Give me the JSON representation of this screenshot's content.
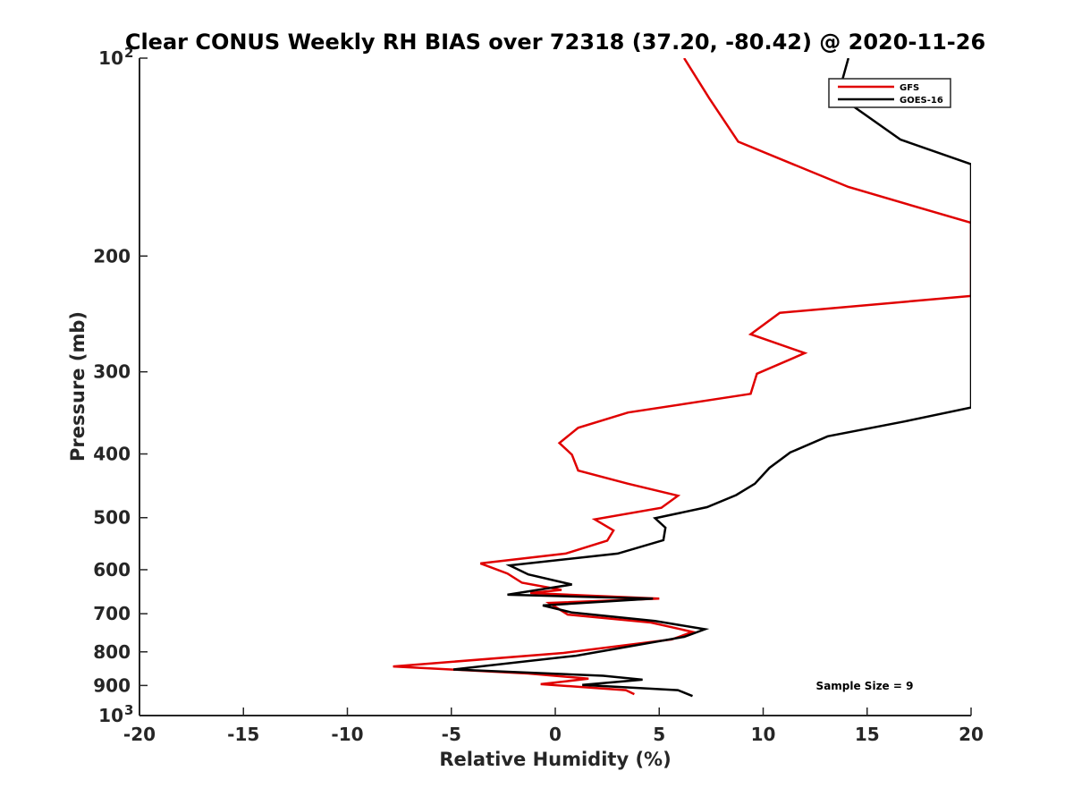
{
  "chart_data": {
    "type": "line",
    "title": "Clear CONUS Weekly RH BIAS over 72318 (37.20, -80.42) @ 2020-11-26",
    "xlabel": "Relative Humidity (%)",
    "ylabel": "Pressure (mb)",
    "xlim": [
      -20,
      20
    ],
    "ylim": [
      100,
      1000
    ],
    "y_scale": "log",
    "y_reversed": true,
    "grid": false,
    "legend_position": "top-right",
    "x_ticks": [
      "-20",
      "-15",
      "-10",
      "-5",
      "0",
      "5",
      "10",
      "15",
      "20"
    ],
    "y_ticks": [
      {
        "value": 100,
        "base": "10",
        "exp": "2"
      },
      {
        "value": 200,
        "base": "200",
        "exp": ""
      },
      {
        "value": 300,
        "base": "300",
        "exp": ""
      },
      {
        "value": 400,
        "base": "400",
        "exp": ""
      },
      {
        "value": 500,
        "base": "500",
        "exp": ""
      },
      {
        "value": 600,
        "base": "600",
        "exp": ""
      },
      {
        "value": 700,
        "base": "700",
        "exp": ""
      },
      {
        "value": 800,
        "base": "800",
        "exp": ""
      },
      {
        "value": 900,
        "base": "900",
        "exp": ""
      },
      {
        "value": 1000,
        "base": "10",
        "exp": "3"
      }
    ],
    "annotation": "Sample Size = 9",
    "series": [
      {
        "name": "GFS",
        "color": "#e00000",
        "points": [
          [
            6.2,
            100
          ],
          [
            7.4,
            115
          ],
          [
            8.8,
            134
          ],
          [
            14.1,
            157
          ],
          [
            20,
            178
          ],
          [
            20,
            230
          ],
          [
            10.8,
            244
          ],
          [
            9.4,
            263
          ],
          [
            12.0,
            281
          ],
          [
            9.7,
            302
          ],
          [
            9.4,
            324
          ],
          [
            3.5,
            346
          ],
          [
            1.1,
            365
          ],
          [
            0.2,
            385
          ],
          [
            0.8,
            401
          ],
          [
            1.1,
            424
          ],
          [
            3.5,
            444
          ],
          [
            5.9,
            463
          ],
          [
            5.1,
            483
          ],
          [
            1.9,
            503
          ],
          [
            2.8,
            523
          ],
          [
            2.5,
            542
          ],
          [
            0.5,
            567
          ],
          [
            -3.6,
            587
          ],
          [
            -2.3,
            608
          ],
          [
            -1.6,
            628
          ],
          [
            0.3,
            644
          ],
          [
            -1.2,
            651
          ],
          [
            5.0,
            664
          ],
          [
            -0.3,
            674
          ],
          [
            0.6,
            702
          ],
          [
            4.6,
            722
          ],
          [
            6.6,
            746
          ],
          [
            5.6,
            766
          ],
          [
            0.4,
            803
          ],
          [
            -7.8,
            842
          ],
          [
            -1.3,
            863
          ],
          [
            1.6,
            879
          ],
          [
            -0.7,
            896
          ],
          [
            3.4,
            915
          ],
          [
            3.8,
            928
          ]
        ]
      },
      {
        "name": "GOES-16",
        "color": "#000000",
        "points": [
          [
            14.1,
            100
          ],
          [
            13.6,
            114
          ],
          [
            16.6,
            133
          ],
          [
            20,
            145
          ],
          [
            20,
            340
          ],
          [
            16.8,
            357
          ],
          [
            13.1,
            376
          ],
          [
            11.3,
            398
          ],
          [
            10.3,
            420
          ],
          [
            9.6,
            444
          ],
          [
            8.7,
            462
          ],
          [
            7.3,
            482
          ],
          [
            4.8,
            501
          ],
          [
            5.3,
            518
          ],
          [
            5.2,
            541
          ],
          [
            3.0,
            567
          ],
          [
            -2.2,
            591
          ],
          [
            -1.3,
            610
          ],
          [
            0.8,
            632
          ],
          [
            -2.3,
            655
          ],
          [
            4.7,
            664
          ],
          [
            -0.6,
            680
          ],
          [
            0.8,
            697
          ],
          [
            4.8,
            718
          ],
          [
            7.2,
            739
          ],
          [
            6.2,
            759
          ],
          [
            1.0,
            811
          ],
          [
            -4.9,
            851
          ],
          [
            2.3,
            870
          ],
          [
            4.2,
            882
          ],
          [
            1.3,
            898
          ],
          [
            5.9,
            915
          ],
          [
            6.6,
            934
          ]
        ]
      }
    ]
  }
}
